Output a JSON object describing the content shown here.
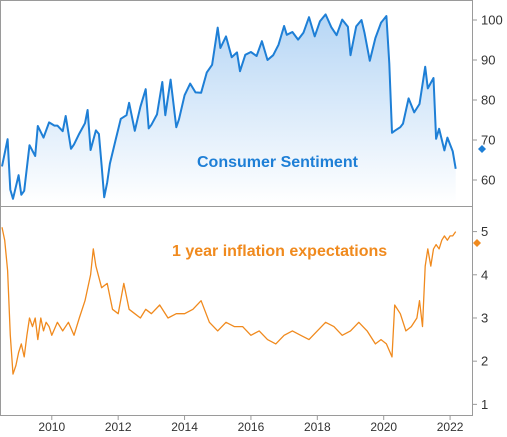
{
  "chart_data": [
    {
      "type": "area",
      "panel": "top",
      "ylim": [
        54,
        104
      ],
      "xlim": [
        2008.5,
        2022.6
      ],
      "yticks": [
        60,
        70,
        80,
        90,
        100
      ],
      "grid": false,
      "annotation": "Consumer Sentiment",
      "color": "#1e7fd6",
      "fill_top": "#b6d6f5",
      "fill_bottom": "#ffffff",
      "x": [
        2008.5,
        2008.67,
        2008.75,
        2008.83,
        2009.0,
        2009.08,
        2009.17,
        2009.33,
        2009.5,
        2009.58,
        2009.75,
        2009.92,
        2010.08,
        2010.17,
        2010.33,
        2010.42,
        2010.58,
        2010.67,
        2010.83,
        2011.0,
        2011.08,
        2011.17,
        2011.33,
        2011.42,
        2011.5,
        2011.58,
        2011.67,
        2011.75,
        2011.92,
        2012.08,
        2012.25,
        2012.33,
        2012.5,
        2012.67,
        2012.83,
        2012.92,
        2013.0,
        2013.17,
        2013.33,
        2013.42,
        2013.58,
        2013.75,
        2013.83,
        2014.0,
        2014.17,
        2014.33,
        2014.5,
        2014.67,
        2014.83,
        2015.0,
        2015.08,
        2015.25,
        2015.42,
        2015.58,
        2015.67,
        2015.83,
        2016.0,
        2016.17,
        2016.33,
        2016.5,
        2016.67,
        2016.83,
        2017.0,
        2017.08,
        2017.25,
        2017.42,
        2017.58,
        2017.75,
        2017.92,
        2018.08,
        2018.25,
        2018.42,
        2018.58,
        2018.75,
        2018.92,
        2019.0,
        2019.17,
        2019.33,
        2019.42,
        2019.58,
        2019.75,
        2019.92,
        2020.08,
        2020.17,
        2020.25,
        2020.33,
        2020.5,
        2020.58,
        2020.75,
        2020.92,
        2021.08,
        2021.25,
        2021.33,
        2021.5,
        2021.58,
        2021.67,
        2021.83,
        2021.92,
        2022.08,
        2022.17
      ],
      "values": [
        63.4,
        70.2,
        57.6,
        55.3,
        61.2,
        56.3,
        57.3,
        68.7,
        66.0,
        73.5,
        70.6,
        74.4,
        73.6,
        73.6,
        72.2,
        76.0,
        67.8,
        68.9,
        71.6,
        74.2,
        77.5,
        67.5,
        72.4,
        71.5,
        63.7,
        55.7,
        59.4,
        64.1,
        69.9,
        75.3,
        76.2,
        79.3,
        72.3,
        78.3,
        82.7,
        72.9,
        73.8,
        76.4,
        84.5,
        76.2,
        85.1,
        73.2,
        75.1,
        81.2,
        84.1,
        81.9,
        81.8,
        86.9,
        88.8,
        98.1,
        93.0,
        95.9,
        90.7,
        91.9,
        87.2,
        91.3,
        92.0,
        91.0,
        94.7,
        90.0,
        91.2,
        93.8,
        98.5,
        96.3,
        97.0,
        95.1,
        96.8,
        100.7,
        95.9,
        99.7,
        101.4,
        98.2,
        96.2,
        100.1,
        98.3,
        91.2,
        98.4,
        100.0,
        96.8,
        89.8,
        95.5,
        99.3,
        101.0,
        89.1,
        71.8,
        72.3,
        73.2,
        74.1,
        80.4,
        76.9,
        79.0,
        88.3,
        82.9,
        85.5,
        70.3,
        72.8,
        67.4,
        70.6,
        67.2,
        62.8
      ]
    },
    {
      "type": "line",
      "panel": "bottom",
      "ylim": [
        0.8,
        5.5
      ],
      "xlim": [
        2008.5,
        2022.6
      ],
      "yticks": [
        1,
        2,
        3,
        4,
        5
      ],
      "grid": false,
      "annotation": "1 year inflation expectations",
      "color": "#f08a1e",
      "x": [
        2008.5,
        2008.58,
        2008.67,
        2008.75,
        2008.83,
        2008.92,
        2009.0,
        2009.08,
        2009.17,
        2009.25,
        2009.33,
        2009.42,
        2009.5,
        2009.58,
        2009.67,
        2009.75,
        2009.83,
        2009.92,
        2010.0,
        2010.17,
        2010.33,
        2010.5,
        2010.67,
        2010.83,
        2011.0,
        2011.17,
        2011.25,
        2011.33,
        2011.5,
        2011.67,
        2011.83,
        2012.0,
        2012.17,
        2012.33,
        2012.5,
        2012.67,
        2012.83,
        2013.0,
        2013.25,
        2013.5,
        2013.75,
        2014.0,
        2014.25,
        2014.5,
        2014.75,
        2015.0,
        2015.25,
        2015.5,
        2015.75,
        2016.0,
        2016.25,
        2016.5,
        2016.75,
        2017.0,
        2017.25,
        2017.5,
        2017.75,
        2018.0,
        2018.25,
        2018.5,
        2018.75,
        2019.0,
        2019.25,
        2019.5,
        2019.75,
        2019.92,
        2020.08,
        2020.25,
        2020.33,
        2020.5,
        2020.67,
        2020.83,
        2021.0,
        2021.08,
        2021.17,
        2021.25,
        2021.33,
        2021.42,
        2021.5,
        2021.58,
        2021.67,
        2021.75,
        2021.83,
        2021.92,
        2022.0,
        2022.08,
        2022.17
      ],
      "values": [
        5.1,
        4.8,
        4.1,
        2.6,
        1.7,
        1.9,
        2.2,
        2.4,
        2.1,
        2.6,
        3.0,
        2.8,
        3.0,
        2.5,
        3.0,
        2.7,
        2.9,
        2.8,
        2.6,
        2.9,
        2.7,
        2.9,
        2.6,
        3.0,
        3.4,
        4.0,
        4.6,
        4.2,
        3.7,
        3.8,
        3.2,
        3.1,
        3.8,
        3.2,
        3.1,
        3.0,
        3.2,
        3.1,
        3.3,
        3.0,
        3.1,
        3.1,
        3.2,
        3.4,
        2.9,
        2.7,
        2.9,
        2.8,
        2.8,
        2.6,
        2.7,
        2.5,
        2.4,
        2.6,
        2.7,
        2.6,
        2.5,
        2.7,
        2.9,
        2.8,
        2.6,
        2.7,
        2.9,
        2.7,
        2.4,
        2.5,
        2.4,
        2.1,
        3.3,
        3.1,
        2.7,
        2.8,
        3.0,
        3.4,
        2.8,
        4.2,
        4.6,
        4.2,
        4.6,
        4.7,
        4.6,
        4.8,
        4.9,
        4.8,
        4.9,
        4.9,
        5.0
      ]
    }
  ],
  "x_axis": {
    "ticks": [
      "2010",
      "2012",
      "2014",
      "2016",
      "2018",
      "2020",
      "2022"
    ],
    "values": [
      2010,
      2012,
      2014,
      2016,
      2018,
      2020,
      2022
    ]
  },
  "top_yticks": [
    "100",
    "90",
    "80",
    "70",
    "60"
  ],
  "bottom_yticks": [
    "5",
    "4",
    "3",
    "2",
    "1"
  ],
  "annotations": {
    "top": "Consumer Sentiment",
    "bottom": "1 year inflation expectations"
  }
}
